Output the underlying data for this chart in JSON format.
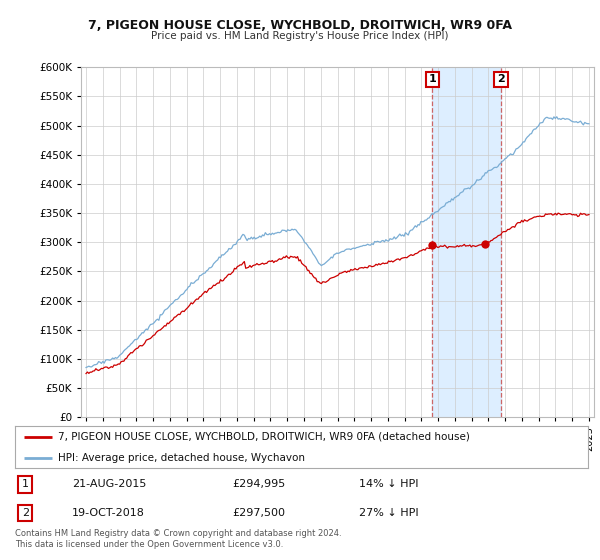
{
  "title1": "7, PIGEON HOUSE CLOSE, WYCHBOLD, DROITWICH, WR9 0FA",
  "title2": "Price paid vs. HM Land Registry's House Price Index (HPI)",
  "legend_label1": "7, PIGEON HOUSE CLOSE, WYCHBOLD, DROITWICH, WR9 0FA (detached house)",
  "legend_label2": "HPI: Average price, detached house, Wychavon",
  "transaction1_date": "21-AUG-2015",
  "transaction1_price": "£294,995",
  "transaction1_hpi": "14% ↓ HPI",
  "transaction2_date": "19-OCT-2018",
  "transaction2_price": "£297,500",
  "transaction2_hpi": "27% ↓ HPI",
  "footer": "Contains HM Land Registry data © Crown copyright and database right 2024.\nThis data is licensed under the Open Government Licence v3.0.",
  "ylim": [
    0,
    600000
  ],
  "yticks": [
    0,
    50000,
    100000,
    150000,
    200000,
    250000,
    300000,
    350000,
    400000,
    450000,
    500000,
    550000,
    600000
  ],
  "transaction1_x": 2015.65,
  "transaction2_x": 2018.8,
  "line1_color": "#cc0000",
  "line2_color": "#7aadd4",
  "highlight_color": "#ddeeff",
  "highlight_border": "#cc6666",
  "bg_color": "#ffffff",
  "grid_color": "#cccccc"
}
